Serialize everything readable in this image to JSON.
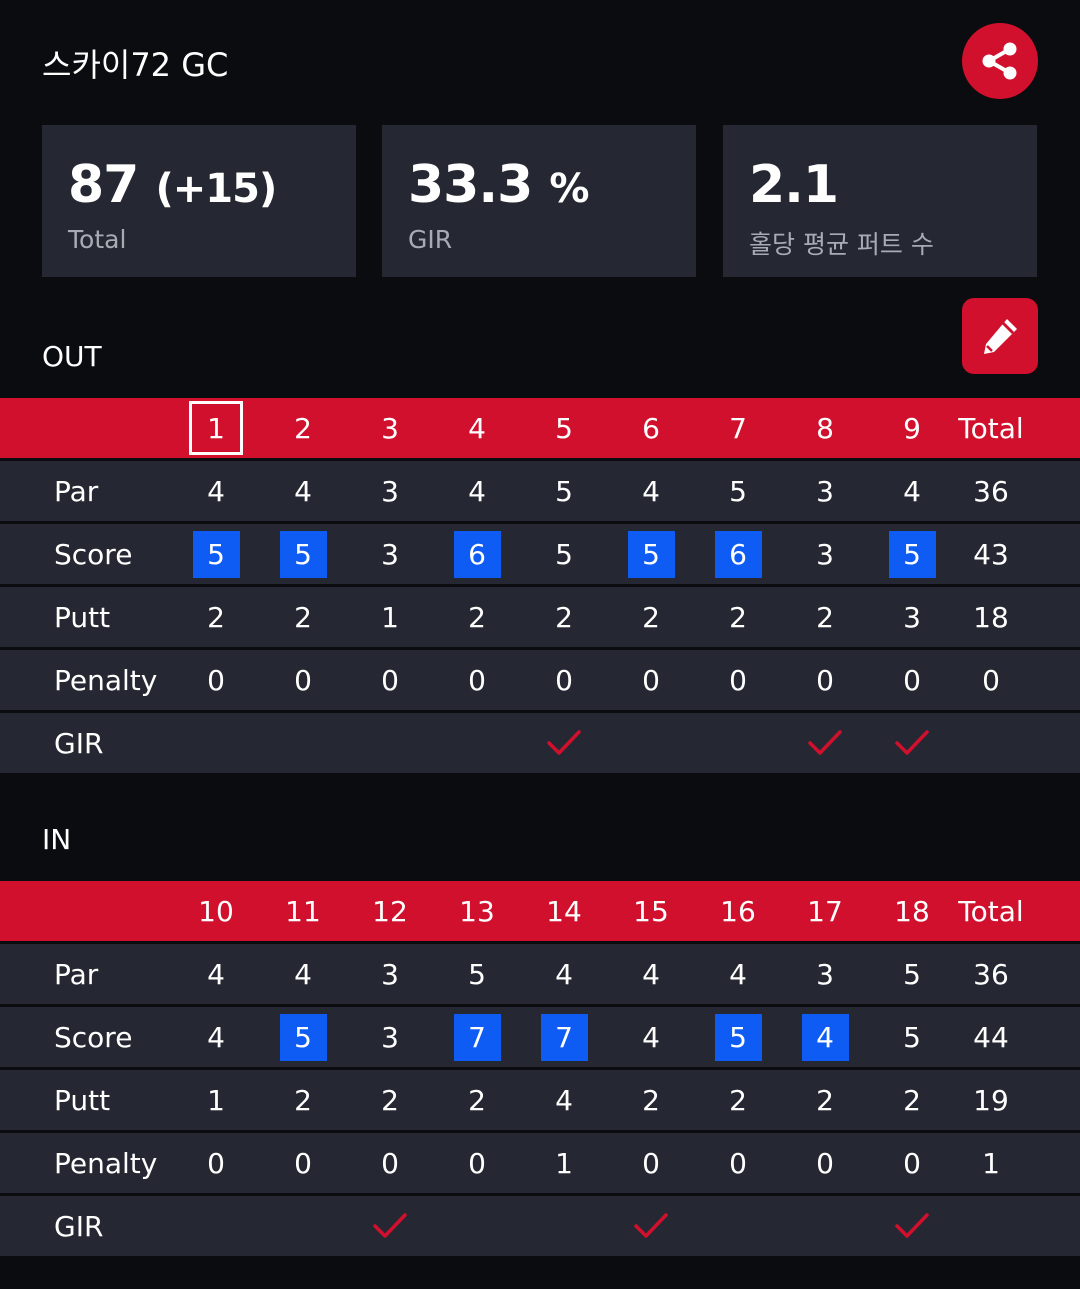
{
  "course_name": "스카이72 GC",
  "summary": {
    "total_score": "87",
    "total_to_par": "(+15)",
    "total_label": "Total",
    "gir_value": "33.3",
    "gir_unit": "%",
    "gir_label": "GIR",
    "putts_value": "2.1",
    "putts_label": "홀당 평균 퍼트 수"
  },
  "colors": {
    "accent": "#d0102c",
    "over_par": "#0f5cf5",
    "card": "#252833",
    "background": "#0b0c0f"
  },
  "row_labels": {
    "par": "Par",
    "score": "Score",
    "putt": "Putt",
    "penalty": "Penalty",
    "gir": "GIR"
  },
  "out": {
    "label": "OUT",
    "holes": [
      "1",
      "2",
      "3",
      "4",
      "5",
      "6",
      "7",
      "8",
      "9"
    ],
    "total_label": "Total",
    "selected_hole": 0,
    "par": [
      "4",
      "4",
      "3",
      "4",
      "5",
      "4",
      "5",
      "3",
      "4"
    ],
    "par_total": "36",
    "score": [
      "5",
      "5",
      "3",
      "6",
      "5",
      "5",
      "6",
      "3",
      "5"
    ],
    "score_total": "43",
    "score_over_par": [
      true,
      true,
      false,
      true,
      false,
      true,
      true,
      false,
      true
    ],
    "putt": [
      "2",
      "2",
      "1",
      "2",
      "2",
      "2",
      "2",
      "2",
      "3"
    ],
    "putt_total": "18",
    "penalty": [
      "0",
      "0",
      "0",
      "0",
      "0",
      "0",
      "0",
      "0",
      "0"
    ],
    "penalty_total": "0",
    "gir": [
      false,
      false,
      false,
      false,
      true,
      false,
      false,
      true,
      true
    ]
  },
  "in": {
    "label": "IN",
    "holes": [
      "10",
      "11",
      "12",
      "13",
      "14",
      "15",
      "16",
      "17",
      "18"
    ],
    "total_label": "Total",
    "selected_hole": -1,
    "par": [
      "4",
      "4",
      "3",
      "5",
      "4",
      "4",
      "4",
      "3",
      "5"
    ],
    "par_total": "36",
    "score": [
      "4",
      "5",
      "3",
      "7",
      "7",
      "4",
      "5",
      "4",
      "5"
    ],
    "score_total": "44",
    "score_over_par": [
      false,
      true,
      false,
      true,
      true,
      false,
      true,
      true,
      false
    ],
    "putt": [
      "1",
      "2",
      "2",
      "2",
      "4",
      "2",
      "2",
      "2",
      "2"
    ],
    "putt_total": "19",
    "penalty": [
      "0",
      "0",
      "0",
      "0",
      "1",
      "0",
      "0",
      "0",
      "0"
    ],
    "penalty_total": "1",
    "gir": [
      false,
      false,
      true,
      false,
      false,
      true,
      false,
      false,
      true
    ]
  },
  "icons": {
    "share": "share-icon",
    "edit": "pencil-icon",
    "check": "check-icon"
  }
}
